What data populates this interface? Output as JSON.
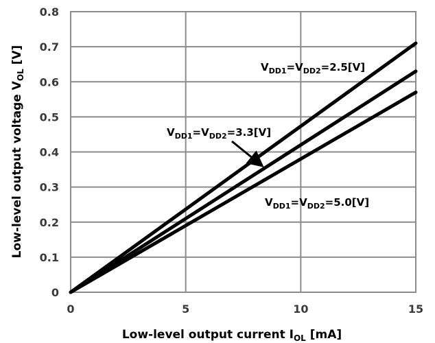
{
  "chart_data": {
    "type": "line",
    "xlabel": "Low-level output current I",
    "xlabel_subscript": "OL",
    "xlabel_unit": " [mA]",
    "ylabel": "Low-level output voltage V",
    "ylabel_subscript": "OL",
    "ylabel_unit": " [V]",
    "xlim": [
      0,
      15
    ],
    "ylim": [
      0,
      0.8
    ],
    "x_ticks": [
      0,
      5,
      10,
      15
    ],
    "x_tick_labels": [
      "0",
      "5",
      "10",
      "15"
    ],
    "y_ticks": [
      0,
      0.1,
      0.2,
      0.3,
      0.4,
      0.5,
      0.6,
      0.7,
      0.8
    ],
    "y_tick_labels": [
      "0",
      "0.1",
      "0.2",
      "0.3",
      "0.4",
      "0.5",
      "0.6",
      "0.7",
      "0.8"
    ],
    "grid": true,
    "line_color": "#000000",
    "grid_color": "#8c8c8c",
    "series": [
      {
        "name": "VDD1=VDD2=2.5[V]",
        "x": [
          0,
          15
        ],
        "y": [
          0,
          0.71
        ]
      },
      {
        "name": "VDD1=VDD2=3.3[V]",
        "x": [
          0,
          15
        ],
        "y": [
          0,
          0.63
        ]
      },
      {
        "name": "VDD1=VDD2=5.0[V]",
        "x": [
          0,
          15
        ],
        "y": [
          0,
          0.57
        ]
      }
    ],
    "annotations": [
      {
        "series_index": 0,
        "prefix": "V",
        "sub1": "DD1",
        "mid": "=V",
        "sub2": "DD2",
        "suffix": "=2.5[V]",
        "arrow": false
      },
      {
        "series_index": 1,
        "prefix": "V",
        "sub1": "DD1",
        "mid": "=V",
        "sub2": "DD2",
        "suffix": "=3.3[V]",
        "arrow": true
      },
      {
        "series_index": 2,
        "prefix": "V",
        "sub1": "DD1",
        "mid": "=V",
        "sub2": "DD2",
        "suffix": "=5.0[V]",
        "arrow": false
      }
    ]
  }
}
